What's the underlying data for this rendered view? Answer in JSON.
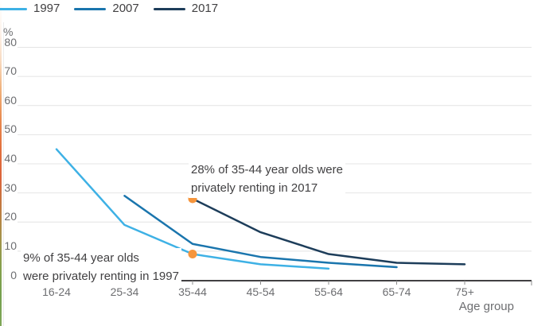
{
  "colors": {
    "series_1997": "#3eb1e5",
    "series_2007": "#1a75ad",
    "series_2017": "#1d3d5a",
    "annotation_dot": "#f6953c",
    "grid": "#e4e4e4",
    "axis": "#414042",
    "tick": "#8c8c8c",
    "tick_text": "#6d6e71",
    "annotation_text": "#414042",
    "edge_strip_gradient": [
      "#ffffff",
      "#fdf4ed",
      "#f8dcc3",
      "#f0b27c",
      "#e88b50",
      "#e2703c",
      "#db633a",
      "#c07a40",
      "#a5924a",
      "#85a04c",
      "#74a04e",
      "#7fa758"
    ]
  },
  "chart_data": {
    "type": "line",
    "title": "",
    "ylabel": "%",
    "xlabel": "Age group",
    "categories": [
      "16-24",
      "25-34",
      "35-44",
      "45-54",
      "55-64",
      "65-74",
      "75+"
    ],
    "ylim": [
      0,
      80
    ],
    "ytick_step": 10,
    "grid": "horizontal",
    "legend_position": "top-left",
    "series": [
      {
        "name": "1997",
        "color": "#3eb1e5",
        "start_category": "16-24",
        "points": {
          "16-24": 45,
          "25-34": 19,
          "35-44": 9,
          "45-54": 5.5,
          "55-64": 4
        },
        "values": [
          45,
          19,
          9,
          5.5,
          4
        ]
      },
      {
        "name": "2007",
        "color": "#1a75ad",
        "start_category": "25-34",
        "points": {
          "25-34": 29,
          "35-44": 12.5,
          "45-54": 8,
          "55-64": 6,
          "65-74": 4.5
        },
        "values": [
          29,
          12.5,
          8,
          6,
          4.5
        ]
      },
      {
        "name": "2017",
        "color": "#1d3d5a",
        "start_category": "35-44",
        "points": {
          "35-44": 28,
          "45-54": 16.5,
          "55-64": 9,
          "65-74": 6,
          "75+": 5.5
        },
        "values": [
          28,
          16.5,
          9,
          6,
          5.5
        ]
      }
    ],
    "annotations": [
      {
        "line1": "28% of 35-44 year olds were",
        "line2": "privately renting in 2017",
        "series": "2017",
        "category": "35-44",
        "value": 28,
        "dot_color": "#f6953c"
      },
      {
        "line1": "9% of 35-44 year olds",
        "line2": "were privately renting in 1997",
        "series": "1997",
        "category": "35-44",
        "value": 9,
        "dot_color": "#f6953c"
      }
    ]
  }
}
